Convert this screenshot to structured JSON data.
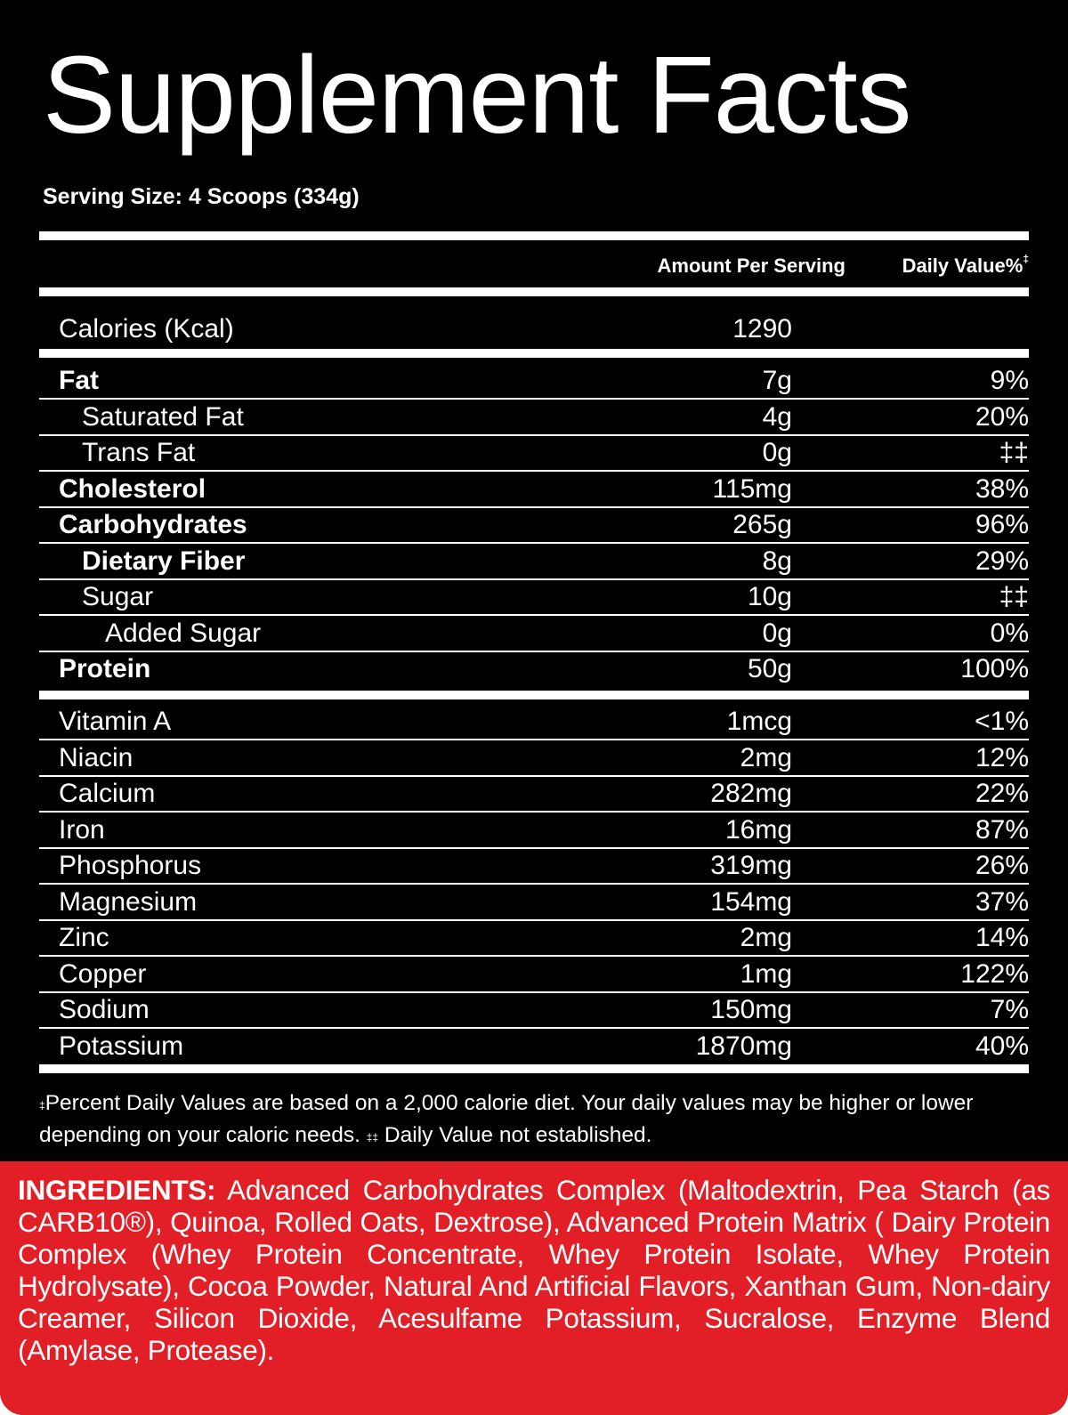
{
  "title": "Supplement Facts",
  "serving_size": "Serving Size: 4 Scoops (334g)",
  "header": {
    "amount": "Amount Per Serving",
    "daily_value": "Daily Value%",
    "daily_value_mark": "‡"
  },
  "calories": {
    "name": "Calories (Kcal)",
    "amount": "1290"
  },
  "macros": [
    {
      "name": "Fat",
      "amount": "7g",
      "dv": "9%"
    },
    {
      "name": "Saturated Fat",
      "amount": "4g",
      "dv": "20%"
    },
    {
      "name": "Trans Fat",
      "amount": "0g",
      "dv": "‡‡"
    },
    {
      "name": "Cholesterol",
      "amount": "115mg",
      "dv": "38%"
    },
    {
      "name": "Carbohydrates",
      "amount": "265g",
      "dv": "96%"
    },
    {
      "name": "Dietary Fiber",
      "amount": "8g",
      "dv": "29%"
    },
    {
      "name": "Sugar",
      "amount": "10g",
      "dv": "‡‡"
    },
    {
      "name": "Added Sugar",
      "amount": "0g",
      "dv": "0%"
    },
    {
      "name": "Protein",
      "amount": "50g",
      "dv": "100%"
    }
  ],
  "micros": [
    {
      "name": "Vitamin A",
      "amount": "1mcg",
      "dv": "<1%"
    },
    {
      "name": "Niacin",
      "amount": "2mg",
      "dv": "12%"
    },
    {
      "name": "Calcium",
      "amount": "282mg",
      "dv": "22%"
    },
    {
      "name": "Iron",
      "amount": "16mg",
      "dv": "87%"
    },
    {
      "name": "Phosphorus",
      "amount": "319mg",
      "dv": "26%"
    },
    {
      "name": "Magnesium",
      "amount": "154mg",
      "dv": "37%"
    },
    {
      "name": "Zinc",
      "amount": "2mg",
      "dv": "14%"
    },
    {
      "name": "Copper",
      "amount": "1mg",
      "dv": "122%"
    },
    {
      "name": "Sodium",
      "amount": "150mg",
      "dv": "7%"
    },
    {
      "name": "Potassium",
      "amount": "1870mg",
      "dv": "40%"
    }
  ],
  "footnote": {
    "mark1": "‡",
    "text1": "Percent Daily Values are based on a 2,000 calorie diet. Your daily values may be higher or lower depending on your caloric needs. ",
    "mark2": "‡‡",
    "text2": " Daily Value not established."
  },
  "ingredients": {
    "label": "INGREDIENTS:",
    "text": " Advanced Carbohydrates Complex (Maltodextrin, Pea Starch (as CARB10®), Quinoa, Rolled Oats, Dextrose), Advanced Protein Matrix ( Dairy Protein Complex (Whey Protein Concentrate, Whey Protein Isolate, Whey Protein Hydrolysate), Cocoa Powder, Natural And Artificial Flavors, Xanthan Gum, Non-dairy Creamer, Silicon Dioxide, Acesulfame Potassium, Sucralose, Enzyme Blend (Amylase, Protease)."
  },
  "colors": {
    "background": "#000000",
    "text": "#ffffff",
    "ingredients_band": "#e21f26"
  }
}
